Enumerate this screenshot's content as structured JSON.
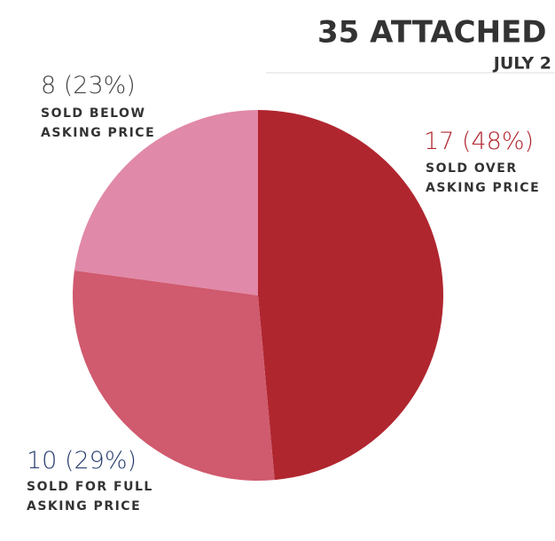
{
  "chart_data": {
    "type": "pie",
    "title": "35 ATTACHED",
    "subtitle": "JULY 2",
    "categories": [
      "SOLD OVER ASKING PRICE",
      "SOLD FOR FULL ASKING PRICE",
      "SOLD BELOW ASKING PRICE"
    ],
    "values": [
      17,
      10,
      8
    ],
    "value_labels": [
      "17 (48%)",
      "10 (29%)",
      "8 (23%)"
    ],
    "colors": [
      "#b0262f",
      "#d05a6e",
      "#e189a8"
    ]
  }
}
